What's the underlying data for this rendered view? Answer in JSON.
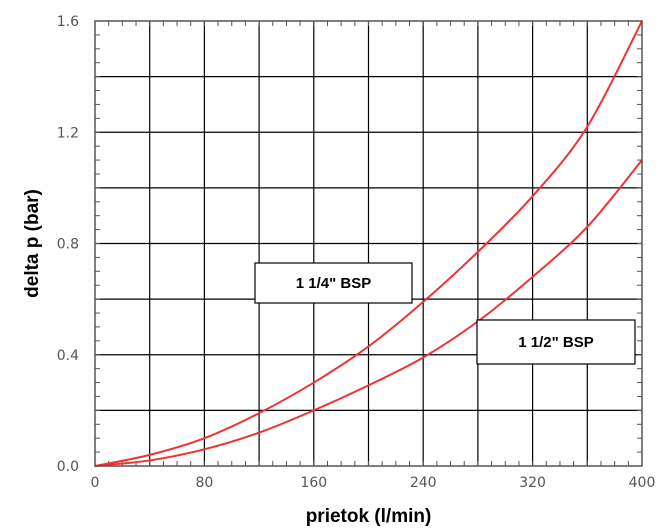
{
  "chart_data": {
    "type": "line",
    "title": "",
    "xlabel": "prietok (l/min)",
    "ylabel": "delta p (bar)",
    "xlim": [
      0,
      400
    ],
    "ylim": [
      0,
      1.6
    ],
    "xticks": [
      "0",
      "80",
      "160",
      "240",
      "320",
      "400"
    ],
    "yticks": [
      "0.0",
      "0.4",
      "0.8",
      "1.2",
      "1.6"
    ],
    "grid": true,
    "series": [
      {
        "name": "1 1/4\" BSP",
        "color": "#ee3333",
        "x": [
          0,
          40,
          80,
          120,
          160,
          200,
          240,
          280,
          320,
          360,
          400
        ],
        "y": [
          0,
          0.04,
          0.1,
          0.19,
          0.3,
          0.43,
          0.59,
          0.77,
          0.97,
          1.22,
          1.6
        ]
      },
      {
        "name": "1 1/2\" BSP",
        "color": "#ee3333",
        "x": [
          0,
          40,
          80,
          120,
          160,
          200,
          240,
          280,
          320,
          360,
          400
        ],
        "y": [
          0,
          0.02,
          0.06,
          0.12,
          0.2,
          0.29,
          0.39,
          0.52,
          0.68,
          0.86,
          1.1
        ]
      }
    ]
  }
}
